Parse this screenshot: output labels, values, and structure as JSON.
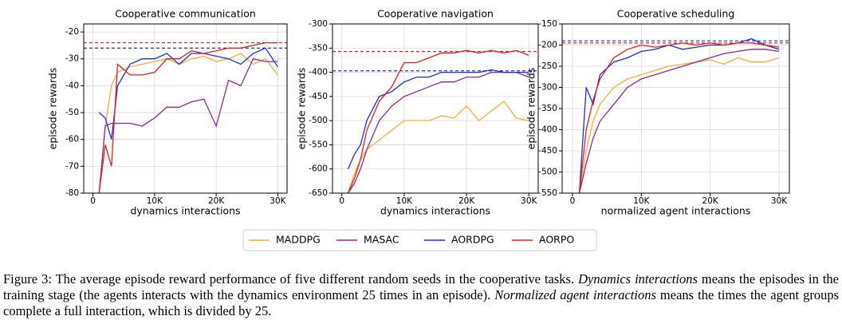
{
  "chart_data": [
    {
      "type": "line",
      "title": "Cooperative communication",
      "xlabel": "dynamics interactions",
      "ylabel": "episode rewards",
      "x": [
        1000,
        2000,
        3000,
        4000,
        6000,
        8000,
        10000,
        12000,
        14000,
        16000,
        18000,
        20000,
        22000,
        24000,
        26000,
        28000,
        30000
      ],
      "xlim": [
        -1500,
        31500
      ],
      "xticks": [
        0,
        {
          "value": 10000,
          "label": "10K"
        },
        {
          "value": 20000,
          "label": "20K"
        },
        {
          "value": 30000,
          "label": "30K"
        }
      ],
      "ylim": [
        -80,
        -17
      ],
      "yticks": [
        -80,
        -70,
        -60,
        -50,
        -40,
        -30,
        -20
      ],
      "grid": true,
      "series": [
        {
          "name": "MADDPG",
          "color": "#f2b134",
          "values": [
            -80,
            -55,
            -40,
            -35,
            -33,
            -32,
            -31,
            -30,
            -32,
            -30,
            -29,
            -31,
            -30,
            -28,
            -32,
            -30,
            -36
          ]
        },
        {
          "name": "MASAC",
          "color": "#8e2a8e",
          "values": [
            -80,
            -55,
            -54,
            -54,
            -54,
            -55,
            -52,
            -48,
            -48,
            -46,
            -45,
            -55,
            -38,
            -40,
            -30,
            -31,
            -31
          ]
        },
        {
          "name": "AORDPG",
          "color": "#1c2ed6",
          "values": [
            -50,
            -52,
            -60,
            -40,
            -32,
            -30,
            -30,
            -28,
            -32,
            -28,
            -28,
            -29,
            -30,
            -32,
            -28,
            -26,
            -33
          ]
        },
        {
          "name": "AORPO",
          "color": "#e0201c",
          "values": [
            -80,
            -62,
            -70,
            -32,
            -36,
            -36,
            -35,
            -30,
            -30,
            -27,
            -28,
            -27,
            -26,
            -26,
            -25,
            -24,
            -24
          ]
        }
      ],
      "hlines": [
        {
          "value": -24,
          "color": "#e0201c"
        },
        {
          "value": -26,
          "color": "#1c2ed6"
        }
      ]
    },
    {
      "type": "line",
      "title": "Cooperative navigation",
      "xlabel": "dynamics interactions",
      "ylabel": "episode rewards",
      "x": [
        1000,
        2000,
        3000,
        4000,
        6000,
        8000,
        10000,
        12000,
        14000,
        16000,
        18000,
        20000,
        22000,
        24000,
        26000,
        28000,
        30000
      ],
      "xlim": [
        -1500,
        31500
      ],
      "xticks": [
        0,
        {
          "value": 10000,
          "label": "10K"
        },
        {
          "value": 20000,
          "label": "20K"
        },
        {
          "value": 30000,
          "label": "30K"
        }
      ],
      "ylim": [
        -650,
        -300
      ],
      "yticks": [
        -650,
        -600,
        -550,
        -500,
        -450,
        -400,
        -350,
        -300
      ],
      "grid": true,
      "series": [
        {
          "name": "MADDPG",
          "color": "#f2b134",
          "values": [
            -650,
            -610,
            -580,
            -560,
            -540,
            -520,
            -500,
            -500,
            -500,
            -490,
            -495,
            -470,
            -500,
            -480,
            -460,
            -495,
            -500
          ]
        },
        {
          "name": "MASAC",
          "color": "#8e2a8e",
          "values": [
            -650,
            -630,
            -600,
            -560,
            -500,
            -470,
            -450,
            -440,
            -430,
            -420,
            -420,
            -410,
            -410,
            -400,
            -400,
            -400,
            -410
          ]
        },
        {
          "name": "AORDPG",
          "color": "#1c2ed6",
          "values": [
            -600,
            -570,
            -550,
            -500,
            -450,
            -440,
            -420,
            -410,
            -410,
            -400,
            -400,
            -400,
            -400,
            -395,
            -400,
            -400,
            -400
          ]
        },
        {
          "name": "AORPO",
          "color": "#e0201c",
          "values": [
            -650,
            -620,
            -580,
            -520,
            -460,
            -430,
            -380,
            -380,
            -370,
            -360,
            -360,
            -355,
            -360,
            -355,
            -360,
            -355,
            -365
          ]
        }
      ],
      "hlines": [
        {
          "value": -357,
          "color": "#e0201c"
        },
        {
          "value": -397,
          "color": "#1c2ed6"
        }
      ]
    },
    {
      "type": "line",
      "title": "Cooperative scheduling",
      "xlabel": "normalized agent interactions",
      "ylabel": "episode rewards",
      "x": [
        1000,
        2000,
        3000,
        4000,
        6000,
        8000,
        10000,
        12000,
        14000,
        16000,
        18000,
        20000,
        22000,
        24000,
        26000,
        28000,
        30000
      ],
      "xlim": [
        -1500,
        31500
      ],
      "xticks": [
        0,
        {
          "value": 10000,
          "label": "10K"
        },
        {
          "value": 20000,
          "label": "20K"
        },
        {
          "value": 30000,
          "label": "30K"
        }
      ],
      "ylim": [
        -550,
        -150
      ],
      "yticks": [
        -550,
        -500,
        -450,
        -400,
        -350,
        -300,
        -250,
        -200,
        -150
      ],
      "grid": true,
      "series": [
        {
          "name": "MADDPG",
          "color": "#f2b134",
          "values": [
            -550,
            -450,
            -380,
            -340,
            -300,
            -280,
            -270,
            -260,
            -250,
            -245,
            -240,
            -235,
            -245,
            -230,
            -240,
            -240,
            -230
          ]
        },
        {
          "name": "MASAC",
          "color": "#8e2a8e",
          "values": [
            -550,
            -480,
            -420,
            -380,
            -340,
            -300,
            -280,
            -270,
            -260,
            -250,
            -240,
            -230,
            -220,
            -215,
            -210,
            -210,
            -215
          ]
        },
        {
          "name": "AORDPG",
          "color": "#1c2ed6",
          "values": [
            -550,
            -300,
            -340,
            -270,
            -240,
            -230,
            -215,
            -210,
            -200,
            -210,
            -205,
            -200,
            -200,
            -195,
            -185,
            -200,
            -210
          ]
        },
        {
          "name": "AORPO",
          "color": "#e0201c",
          "values": [
            -550,
            -400,
            -330,
            -280,
            -230,
            -210,
            -200,
            -205,
            -200,
            -195,
            -200,
            -195,
            -200,
            -195,
            -195,
            -200,
            -205
          ]
        }
      ],
      "hlines": [
        {
          "value": -195,
          "color": "#e0201c"
        },
        {
          "value": -190,
          "color": "#1c2ed6"
        }
      ]
    }
  ],
  "caption": [
    {
      "text": "Figure 3: The average episode reward performance of five different random seeds in the cooperative tasks. ",
      "italic": false
    },
    {
      "text": "Dynamics interactions",
      "italic": true
    },
    {
      "text": " means the episodes in the training stage (the agents interacts with the dynamics environment 25 times in an episode). ",
      "italic": false
    },
    {
      "text": "Normalized agent interactions",
      "italic": true
    },
    {
      "text": " means the times the agent groups complete a full interaction, which is divided by 25.",
      "italic": false
    }
  ]
}
